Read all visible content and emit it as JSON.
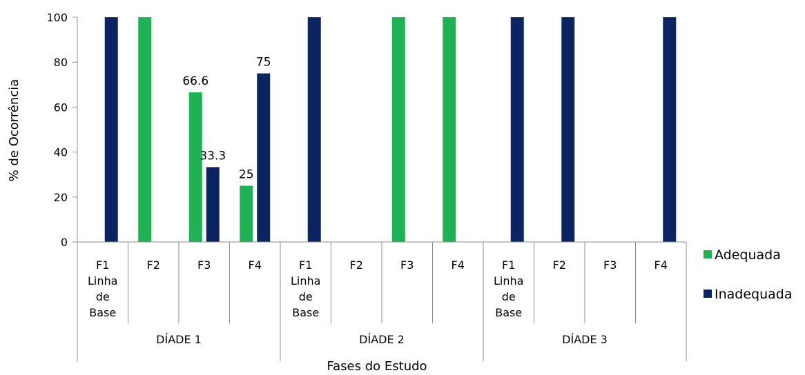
{
  "chart_data": {
    "type": "bar",
    "ylabel": "% de Ocorrência",
    "xlabel": "Fases do Estudo",
    "ylim": [
      0,
      100
    ],
    "yticks": [
      0,
      20,
      40,
      60,
      80,
      100
    ],
    "legend_position": "right",
    "groups": [
      {
        "label": "DÍADE 1",
        "categories": [
          [
            "F1",
            "Linha",
            "de",
            "Base"
          ],
          [
            "F2"
          ],
          [
            "F3"
          ],
          [
            "F4"
          ]
        ]
      },
      {
        "label": "DÍADE 2",
        "categories": [
          [
            "F1",
            "Linha",
            "de",
            "Base"
          ],
          [
            "F2"
          ],
          [
            "F3"
          ],
          [
            "F4"
          ]
        ]
      },
      {
        "label": "DÍADE 3",
        "categories": [
          [
            "F1",
            "Linha",
            "de",
            "Base"
          ],
          [
            "F2"
          ],
          [
            "F3"
          ],
          [
            "F4"
          ]
        ]
      }
    ],
    "series": [
      {
        "name": "Adequada",
        "color": "#1fb153",
        "values": [
          0,
          100,
          66.6,
          25,
          0,
          0,
          100,
          100,
          0,
          0,
          0,
          0
        ],
        "labels": [
          "",
          "",
          "66.6",
          "25",
          "",
          "",
          "",
          "",
          "",
          "",
          "",
          ""
        ]
      },
      {
        "name": "Inadequada",
        "color": "#0c2461",
        "values": [
          100,
          0,
          33.3,
          75,
          100,
          0,
          0,
          0,
          100,
          100,
          0,
          100
        ],
        "labels": [
          "",
          "",
          "33.3",
          "75",
          "",
          "",
          "",
          "",
          "",
          "",
          "",
          ""
        ]
      }
    ]
  }
}
